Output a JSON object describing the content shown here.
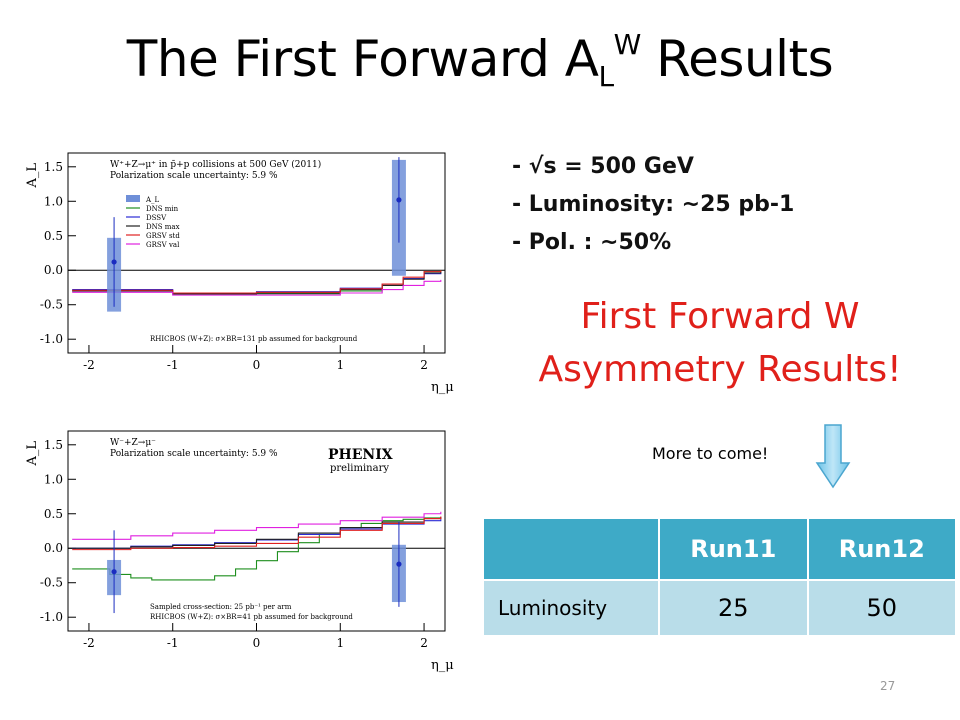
{
  "title": {
    "main": "The First Forward A",
    "sub": "L",
    "sup": "W",
    "tail": " Results"
  },
  "bullets": [
    "- √s = 500 GeV",
    "- Luminosity: ~25 pb-1",
    "- Pol. : ~50%"
  ],
  "headline": [
    "First Forward W",
    "Asymmetry Results!"
  ],
  "note": "More to come!",
  "table": {
    "headers": [
      "",
      "Run11",
      "Run12"
    ],
    "rows": [
      {
        "label": "Luminosity",
        "values": [
          "25",
          "50"
        ]
      }
    ]
  },
  "page_number": "27",
  "logo": {
    "name": "PHENIX",
    "sub": "preliminary"
  },
  "colors": {
    "headline": "#e0201a",
    "table_header": "#3eaac7",
    "table_row": "#b9dde9",
    "data_bar": "#6f8fd8"
  },
  "chart_data": [
    {
      "type": "line",
      "ylabel": "A_L",
      "xlabel": "η_μ+",
      "ylim": [
        -1.2,
        1.7
      ],
      "xlim": [
        -2.25,
        2.25
      ],
      "xticks": [
        "-2",
        "-1",
        "0",
        "1",
        "2"
      ],
      "yticks": [
        "1.5",
        "1.0",
        "0.5",
        "0.0",
        "-0.5",
        "-1.0"
      ],
      "annotation_lines": [
        "W⁺+Z→μ⁺ in p̄+p collisions at 500 GeV (2011)",
        "Polarization scale uncertainty: 5.9 %"
      ],
      "footnote": "RHICBOS (W+Z): σ×BR=131 pb assumed for background",
      "legend": [
        "A_L",
        "DNS min",
        "DSSV",
        "DNS max",
        "GRSV std",
        "GRSV val"
      ],
      "points": [
        {
          "x": -1.7,
          "y": 0.12,
          "err": 0.65,
          "sys_low": -0.6,
          "sys_high": 0.47
        },
        {
          "x": 1.7,
          "y": 1.02,
          "err": 0.62,
          "sys_low": -0.08,
          "sys_high": 1.6
        }
      ],
      "series": [
        {
          "name": "DNS min",
          "color": "#1f8f1f",
          "x": [
            -2.2,
            -1.0,
            0.0,
            1.0,
            1.5,
            1.75,
            2.0,
            2.2
          ],
          "y": [
            -0.3,
            -0.35,
            -0.34,
            -0.3,
            -0.22,
            -0.12,
            -0.02,
            0.0
          ]
        },
        {
          "name": "DSSV",
          "color": "#2b2bd6",
          "x": [
            -2.2,
            -1.0,
            0.0,
            1.0,
            1.5,
            1.75,
            2.0,
            2.2
          ],
          "y": [
            -0.28,
            -0.33,
            -0.31,
            -0.26,
            -0.2,
            -0.12,
            -0.05,
            -0.03
          ]
        },
        {
          "name": "DNS max",
          "color": "#222222",
          "x": [
            -2.2,
            -1.0,
            0.0,
            1.0,
            1.5,
            1.75,
            2.0,
            2.2
          ],
          "y": [
            -0.3,
            -0.34,
            -0.33,
            -0.28,
            -0.22,
            -0.13,
            -0.04,
            -0.02
          ]
        },
        {
          "name": "GRSV std",
          "color": "#e02020",
          "x": [
            -2.2,
            -1.0,
            0.0,
            1.0,
            1.5,
            1.75,
            2.0,
            2.2
          ],
          "y": [
            -0.29,
            -0.33,
            -0.32,
            -0.27,
            -0.2,
            -0.1,
            -0.02,
            0.0
          ]
        },
        {
          "name": "GRSV val",
          "color": "#e020e0",
          "x": [
            -2.2,
            -1.0,
            0.0,
            1.0,
            1.5,
            1.75,
            2.0,
            2.2
          ],
          "y": [
            -0.32,
            -0.36,
            -0.36,
            -0.33,
            -0.28,
            -0.22,
            -0.16,
            -0.14
          ]
        }
      ]
    },
    {
      "type": "line",
      "ylabel": "A_L",
      "xlabel": "η_μ-",
      "ylim": [
        -1.2,
        1.7
      ],
      "xlim": [
        -2.25,
        2.25
      ],
      "xticks": [
        "-2",
        "-1",
        "0",
        "1",
        "2"
      ],
      "yticks": [
        "1.5",
        "1.0",
        "0.5",
        "0.0",
        "-0.5",
        "-1.0"
      ],
      "annotation_lines": [
        "W⁻+Z→μ⁻",
        "Polarization scale uncertainty: 5.9 %"
      ],
      "footnote": "RHICBOS (W+Z): σ×BR=41 pb assumed for background",
      "footnote2": "Sampled cross-section: 25 pb⁻¹ per arm",
      "points": [
        {
          "x": -1.7,
          "y": -0.34,
          "err": 0.6,
          "sys_low": -0.68,
          "sys_high": -0.17
        },
        {
          "x": 1.7,
          "y": -0.23,
          "err": 0.62,
          "sys_low": -0.78,
          "sys_high": 0.05
        }
      ],
      "series": [
        {
          "name": "DNS min",
          "color": "#1f8f1f",
          "x": [
            -2.2,
            -1.75,
            -1.5,
            -1.25,
            -1.0,
            -0.75,
            -0.5,
            -0.25,
            0.0,
            0.25,
            0.5,
            0.75,
            1.0,
            1.25,
            1.5,
            1.75,
            2.0,
            2.2
          ],
          "y": [
            -0.3,
            -0.38,
            -0.43,
            -0.46,
            -0.46,
            -0.46,
            -0.4,
            -0.3,
            -0.18,
            -0.05,
            0.08,
            0.2,
            0.3,
            0.36,
            0.4,
            0.42,
            0.44,
            0.45
          ]
        },
        {
          "name": "DSSV",
          "color": "#2b2bd6",
          "x": [
            -2.2,
            -1.5,
            -1.0,
            -0.5,
            0.0,
            0.5,
            1.0,
            1.5,
            2.0,
            2.2
          ],
          "y": [
            0.0,
            0.03,
            0.05,
            0.08,
            0.12,
            0.2,
            0.28,
            0.35,
            0.4,
            0.42
          ]
        },
        {
          "name": "DNS max",
          "color": "#222222",
          "x": [
            -2.2,
            -1.5,
            -1.0,
            -0.5,
            0.0,
            0.5,
            1.0,
            1.5,
            2.0,
            2.2
          ],
          "y": [
            0.0,
            0.02,
            0.04,
            0.07,
            0.13,
            0.22,
            0.3,
            0.38,
            0.43,
            0.45
          ]
        },
        {
          "name": "GRSV std",
          "color": "#e02020",
          "x": [
            -2.2,
            -1.5,
            -1.0,
            -0.5,
            0.0,
            0.5,
            1.0,
            1.5,
            2.0,
            2.2
          ],
          "y": [
            -0.02,
            0.0,
            0.01,
            0.03,
            0.07,
            0.16,
            0.26,
            0.36,
            0.43,
            0.46
          ]
        },
        {
          "name": "GRSV val",
          "color": "#e020e0",
          "x": [
            -2.2,
            -1.5,
            -1.0,
            -0.5,
            0.0,
            0.5,
            1.0,
            1.5,
            2.0,
            2.2
          ],
          "y": [
            0.13,
            0.18,
            0.22,
            0.26,
            0.3,
            0.35,
            0.4,
            0.45,
            0.5,
            0.53
          ]
        }
      ]
    }
  ]
}
